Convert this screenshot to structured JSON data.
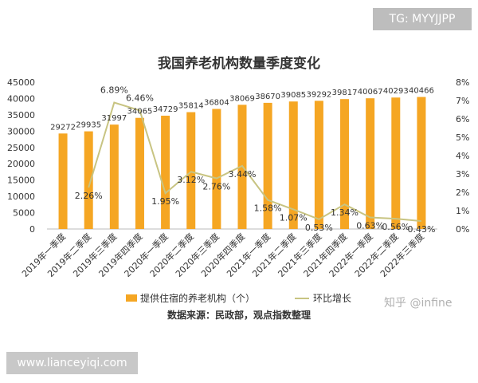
{
  "tag": "TG: MYYJJPP",
  "site": "www.lianceyiqi.com",
  "watermark": "知乎 @infine",
  "source": "数据来源：民政部，观点指数整理",
  "colors": {
    "bar": "#f5a623",
    "line": "#c8c482",
    "text": "#333333",
    "axis": "#555555"
  },
  "chart_data": {
    "type": "bar",
    "title": "我国养老机构数量季度变化",
    "categories": [
      "2019年一季度",
      "2019年二季度",
      "2019年三季度",
      "2019年四季度",
      "2020年一季度",
      "2020年二季度",
      "2020年三季度",
      "2020年四季度",
      "2021年一季度",
      "2021年二季度",
      "2021年三季度",
      "2021年四季度",
      "2022年一季度",
      "2022年二季度",
      "2022年三季度"
    ],
    "series": [
      {
        "name": "提供住宿的养老机构（个）",
        "type": "bar",
        "axis": "left",
        "values": [
          29272,
          29935,
          31997,
          34065,
          34729,
          35814,
          36804,
          38069,
          38670,
          39085,
          39292,
          39817,
          40067,
          40293,
          40466
        ],
        "labels": [
          "29272",
          "29935",
          "31997",
          "34065",
          "34729",
          "35814",
          "36804",
          "38069",
          "38670",
          "39085",
          "39292",
          "39817",
          "40067",
          "40293",
          "40466"
        ]
      },
      {
        "name": "环比增长",
        "type": "line",
        "axis": "right",
        "values": [
          null,
          2.26,
          6.89,
          6.46,
          1.95,
          3.12,
          2.76,
          3.44,
          1.58,
          1.07,
          0.53,
          1.34,
          0.63,
          0.56,
          0.43
        ],
        "labels": [
          "",
          "2.26%",
          "6.89%",
          "6.46%",
          "1.95%",
          "3.12%",
          "2.76%",
          "3.44%",
          "1.58%",
          "1.07%",
          "0.53%",
          "1.34%",
          "0.63%",
          "0.56%",
          "0.43%"
        ]
      }
    ],
    "ylim": [
      0,
      45000
    ],
    "yticks": [
      "0",
      "5000",
      "10000",
      "15000",
      "20000",
      "25000",
      "30000",
      "35000",
      "40000",
      "45000"
    ],
    "y2lim": [
      0,
      8
    ],
    "y2ticks": [
      "0%",
      "1%",
      "2%",
      "3%",
      "4%",
      "5%",
      "6%",
      "7%",
      "8%"
    ],
    "legend_position": "bottom",
    "grid": false
  }
}
